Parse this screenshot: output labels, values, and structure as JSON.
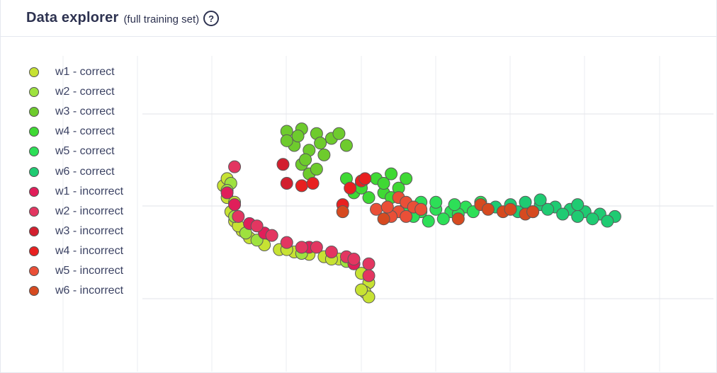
{
  "header": {
    "title": "Data explorer",
    "subtitle": "(full training set)",
    "help_icon": "question-circle-icon"
  },
  "legend": [
    {
      "label": "w1 - correct",
      "color": "#c7e233"
    },
    {
      "label": "w2 - correct",
      "color": "#9ee23f"
    },
    {
      "label": "w3 - correct",
      "color": "#6ecb2d"
    },
    {
      "label": "w4 - correct",
      "color": "#3fd934"
    },
    {
      "label": "w5 - correct",
      "color": "#2ddf57"
    },
    {
      "label": "w6 - correct",
      "color": "#1fcb72"
    },
    {
      "label": "w1 - incorrect",
      "color": "#e01e5a"
    },
    {
      "label": "w2 - incorrect",
      "color": "#e33661"
    },
    {
      "label": "w3 - incorrect",
      "color": "#d21f2e"
    },
    {
      "label": "w4 - incorrect",
      "color": "#e82020"
    },
    {
      "label": "w5 - incorrect",
      "color": "#ea4f37"
    },
    {
      "label": "w6 - incorrect",
      "color": "#d64a20"
    }
  ],
  "chart_data": {
    "type": "scatter",
    "grid": true,
    "legend_position": "top-left",
    "series": [
      {
        "name": "w1 - correct",
        "color": "#c7e233",
        "points": [
          [
            2.2,
            4.6
          ],
          [
            2.3,
            4.5
          ],
          [
            2.25,
            4.3
          ],
          [
            2.3,
            4.1
          ],
          [
            2.4,
            3.9
          ],
          [
            2.5,
            3.75
          ],
          [
            2.7,
            3.6
          ],
          [
            2.9,
            3.5
          ],
          [
            3.1,
            3.45
          ],
          [
            3.3,
            3.4
          ],
          [
            3.5,
            3.35
          ],
          [
            3.7,
            3.3
          ],
          [
            3.9,
            3.2
          ],
          [
            4.0,
            3.0
          ],
          [
            4.1,
            2.8
          ],
          [
            4.05,
            2.6
          ],
          [
            4.1,
            2.5
          ],
          [
            2.15,
            4.85
          ],
          [
            2.2,
            5.0
          ],
          [
            2.35,
            4.0
          ],
          [
            3.0,
            3.5
          ],
          [
            3.6,
            3.3
          ],
          [
            4.0,
            2.65
          ]
        ]
      },
      {
        "name": "w2 - correct",
        "color": "#9ee23f",
        "points": [
          [
            2.25,
            4.9
          ],
          [
            2.2,
            4.75
          ],
          [
            2.3,
            4.2
          ],
          [
            2.45,
            3.85
          ],
          [
            2.6,
            3.7
          ],
          [
            3.2,
            3.42
          ],
          [
            3.8,
            3.25
          ]
        ]
      },
      {
        "name": "w3 - correct",
        "color": "#6ecb2d",
        "points": [
          [
            3.0,
            6.0
          ],
          [
            3.2,
            6.05
          ],
          [
            3.4,
            5.95
          ],
          [
            3.6,
            5.85
          ],
          [
            3.8,
            5.7
          ],
          [
            3.1,
            5.7
          ],
          [
            3.3,
            5.6
          ],
          [
            3.5,
            5.5
          ],
          [
            3.2,
            5.3
          ],
          [
            3.3,
            5.1
          ],
          [
            3.0,
            5.8
          ],
          [
            3.7,
            5.95
          ],
          [
            3.15,
            5.9
          ],
          [
            3.45,
            5.75
          ],
          [
            3.25,
            5.4
          ],
          [
            3.4,
            5.2
          ]
        ]
      },
      {
        "name": "w4 - correct",
        "color": "#3fd934",
        "points": [
          [
            3.8,
            5.0
          ],
          [
            4.0,
            4.9
          ],
          [
            4.2,
            5.0
          ],
          [
            4.4,
            5.1
          ],
          [
            3.9,
            4.7
          ],
          [
            4.1,
            4.6
          ],
          [
            4.3,
            4.7
          ],
          [
            4.5,
            4.8
          ],
          [
            4.3,
            4.9
          ],
          [
            4.6,
            5.0
          ],
          [
            4.0,
            4.8
          ],
          [
            4.4,
            4.6
          ]
        ]
      },
      {
        "name": "w5 - correct",
        "color": "#2ddf57",
        "points": [
          [
            4.6,
            4.4
          ],
          [
            4.8,
            4.3
          ],
          [
            5.0,
            4.35
          ],
          [
            5.2,
            4.3
          ],
          [
            5.4,
            4.4
          ],
          [
            5.6,
            4.5
          ],
          [
            4.7,
            4.2
          ],
          [
            4.9,
            4.1
          ],
          [
            5.1,
            4.15
          ],
          [
            5.3,
            4.25
          ],
          [
            5.5,
            4.3
          ],
          [
            4.8,
            4.5
          ],
          [
            5.0,
            4.5
          ],
          [
            5.25,
            4.45
          ]
        ]
      },
      {
        "name": "w6 - correct",
        "color": "#1fcb72",
        "points": [
          [
            5.8,
            4.4
          ],
          [
            6.0,
            4.45
          ],
          [
            6.2,
            4.5
          ],
          [
            6.4,
            4.45
          ],
          [
            6.6,
            4.4
          ],
          [
            6.8,
            4.35
          ],
          [
            7.0,
            4.3
          ],
          [
            7.2,
            4.25
          ],
          [
            7.4,
            4.2
          ],
          [
            6.1,
            4.3
          ],
          [
            6.3,
            4.3
          ],
          [
            6.5,
            4.35
          ],
          [
            6.7,
            4.25
          ],
          [
            6.9,
            4.2
          ],
          [
            7.1,
            4.15
          ],
          [
            7.3,
            4.1
          ],
          [
            6.4,
            4.55
          ],
          [
            6.9,
            4.45
          ]
        ]
      },
      {
        "name": "w1 - incorrect",
        "color": "#e01e5a",
        "points": [
          [
            2.2,
            4.7
          ],
          [
            2.3,
            4.45
          ],
          [
            2.5,
            4.05
          ],
          [
            2.7,
            3.85
          ],
          [
            3.3,
            3.55
          ],
          [
            3.9,
            3.2
          ]
        ]
      },
      {
        "name": "w2 - incorrect",
        "color": "#e33661",
        "points": [
          [
            2.3,
            5.25
          ],
          [
            2.35,
            4.2
          ],
          [
            2.6,
            4.0
          ],
          [
            2.8,
            3.8
          ],
          [
            3.0,
            3.65
          ],
          [
            3.2,
            3.55
          ],
          [
            3.4,
            3.55
          ],
          [
            3.6,
            3.45
          ],
          [
            3.8,
            3.35
          ],
          [
            3.9,
            3.3
          ],
          [
            4.1,
            3.2
          ],
          [
            4.1,
            2.95
          ]
        ]
      },
      {
        "name": "w3 - incorrect",
        "color": "#d21f2e",
        "points": [
          [
            2.95,
            5.3
          ],
          [
            3.0,
            4.9
          ]
        ]
      },
      {
        "name": "w4 - incorrect",
        "color": "#e82020",
        "points": [
          [
            3.2,
            4.85
          ],
          [
            3.35,
            4.9
          ],
          [
            3.85,
            4.8
          ],
          [
            4.0,
            4.95
          ],
          [
            4.05,
            5.0
          ],
          [
            3.75,
            4.45
          ]
        ]
      },
      {
        "name": "w5 - incorrect",
        "color": "#ea4f37",
        "points": [
          [
            4.5,
            4.6
          ],
          [
            4.6,
            4.5
          ],
          [
            4.7,
            4.4
          ],
          [
            4.8,
            4.35
          ],
          [
            4.5,
            4.3
          ],
          [
            4.2,
            4.35
          ],
          [
            4.6,
            4.2
          ],
          [
            4.4,
            4.2
          ],
          [
            4.35,
            4.4
          ]
        ]
      },
      {
        "name": "w6 - incorrect",
        "color": "#d64a20",
        "points": [
          [
            3.75,
            4.3
          ],
          [
            4.3,
            4.15
          ],
          [
            5.3,
            4.15
          ],
          [
            5.6,
            4.45
          ],
          [
            5.7,
            4.35
          ],
          [
            5.9,
            4.3
          ],
          [
            6.0,
            4.35
          ],
          [
            6.2,
            4.25
          ],
          [
            6.3,
            4.3
          ]
        ]
      }
    ]
  }
}
